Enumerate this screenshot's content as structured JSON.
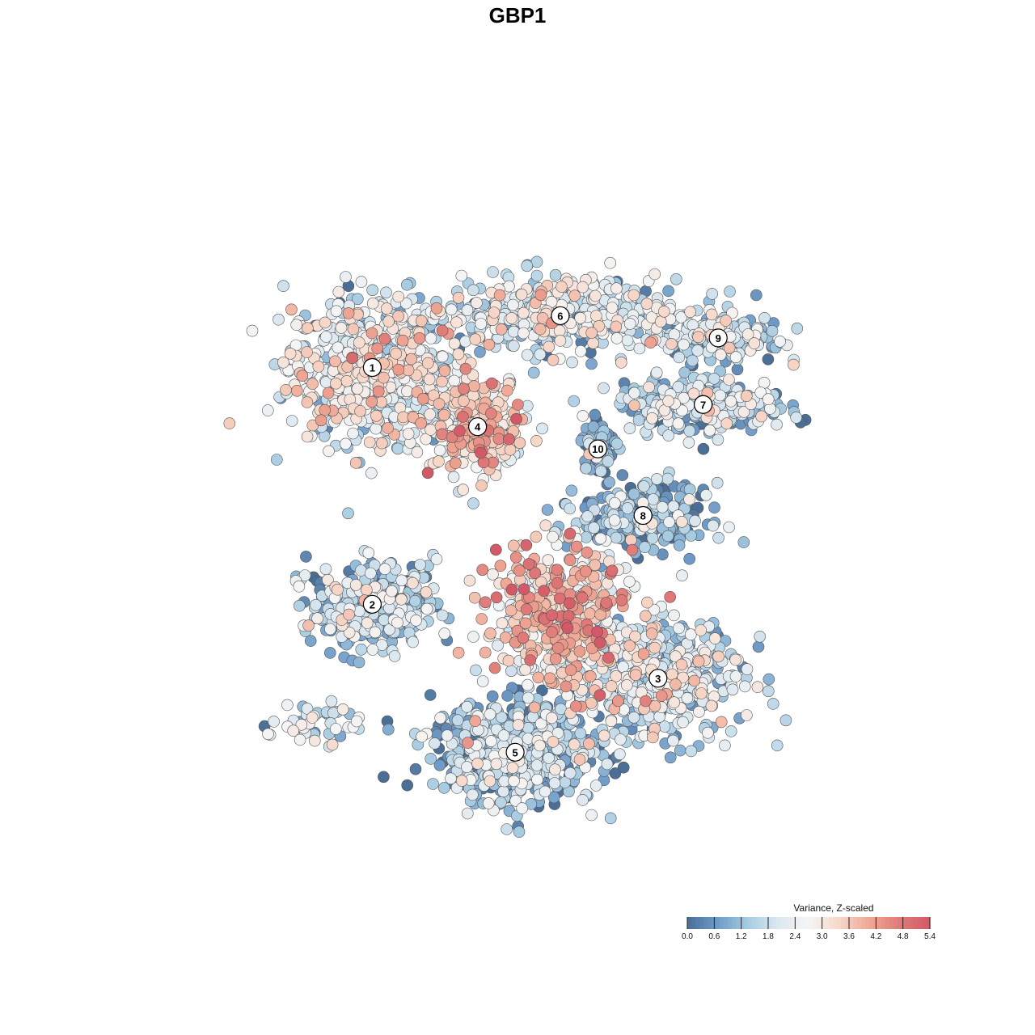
{
  "chart_data": {
    "type": "scatter",
    "title": "GBP1",
    "legend": {
      "title": "Variance, Z-scaled",
      "position": "bottom-right",
      "ticks": [
        "0.0",
        "0.6",
        "1.2",
        "1.8",
        "2.4",
        "3.0",
        "3.6",
        "4.2",
        "4.8",
        "5.4"
      ],
      "range": [
        0.0,
        5.4
      ]
    },
    "colors": {
      "low": "#4a6e96",
      "mid": "#f5f5f5",
      "high": "#d25a68",
      "stops": [
        "#4a6e96",
        "#6f9bc8",
        "#a7cce2",
        "#dce8f0",
        "#f5f5f5",
        "#f6d7c8",
        "#f0a895",
        "#e07a78",
        "#d25a68"
      ]
    },
    "clusters": [
      {
        "label": "1",
        "x": -22,
        "y": 20,
        "spread": [
          8,
          7
        ],
        "mean": 2.2,
        "count": 650
      },
      {
        "label": "6",
        "x": 3,
        "y": 27,
        "spread": [
          11,
          3.5
        ],
        "mean": 1.9,
        "count": 450
      },
      {
        "label": "4",
        "x": -8,
        "y": 12,
        "spread": [
          4.5,
          4.5
        ],
        "mean": 3.0,
        "count": 320
      },
      {
        "label": "9",
        "x": 24,
        "y": 24,
        "spread": [
          6,
          2.5
        ],
        "mean": 1.5,
        "count": 180
      },
      {
        "label": "7",
        "x": 22,
        "y": 15,
        "spread": [
          8,
          2.5
        ],
        "mean": 1.5,
        "count": 280
      },
      {
        "label": "10",
        "x": 8,
        "y": 9,
        "spread": [
          1.6,
          2.5
        ],
        "mean": 0.6,
        "count": 90
      },
      {
        "label": "8",
        "x": 14,
        "y": 0,
        "spread": [
          6,
          3
        ],
        "mean": 0.8,
        "count": 280
      },
      {
        "label": "2",
        "x": -22,
        "y": -12,
        "spread": [
          6,
          4
        ],
        "mean": 1.4,
        "count": 320
      },
      {
        "label": "3",
        "x": 16,
        "y": -22,
        "spread": [
          8,
          6
        ],
        "mean": 1.8,
        "count": 480
      },
      {
        "label": "5",
        "x": -3,
        "y": -32,
        "spread": [
          8,
          5
        ],
        "mean": 1.1,
        "count": 560
      },
      {
        "label": "",
        "x": 3,
        "y": -14,
        "spread": [
          7,
          7
        ],
        "mean": 3.2,
        "count": 520
      },
      {
        "label": "",
        "x": -30,
        "y": -28,
        "spread": [
          4,
          2
        ],
        "mean": 2.0,
        "count": 45
      }
    ],
    "xlim": [
      -50,
      50
    ],
    "ylim": [
      -50,
      50
    ]
  }
}
